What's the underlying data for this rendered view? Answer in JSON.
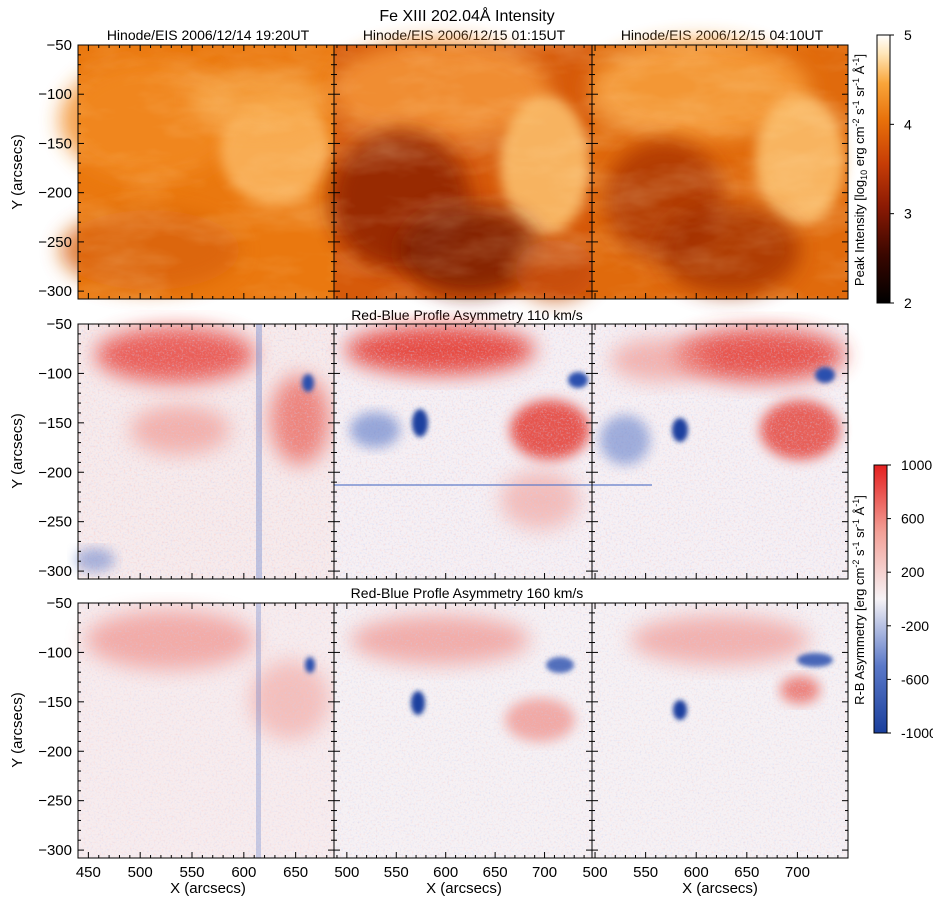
{
  "figure": {
    "title": "Fe XIII 202.04Å Intensity",
    "row_titles": [
      "",
      "Red-Blue Profle Asymmetry 110 km/s",
      "Red-Blue Profle Asymmetry 160 km/s"
    ],
    "column_titles": [
      "Hinode/EIS 2006/12/14 19:20UT",
      "Hinode/EIS 2006/12/15 01:15UT",
      "Hinode/EIS 2006/12/15 04:10UT"
    ],
    "ylabel": "Y (arcsecs)",
    "xlabel": "X (arcsecs)"
  },
  "chart_data": {
    "type": "heatmap",
    "rows": [
      {
        "quantity": "Fe XIII 202.04Å peak intensity",
        "colormap": "black-red-orange-yellow-white",
        "colorbar": {
          "label_parts": [
            "Peak Intensity [log",
            "10",
            " erg cm",
            "-2",
            " s",
            "-1",
            " sr",
            "-1",
            " Å",
            "-1",
            "]"
          ],
          "range": [
            2,
            5
          ],
          "ticks": [
            "2",
            "3",
            "4",
            "5"
          ]
        }
      },
      {
        "title": "Red-Blue Profle Asymmetry 110 km/s",
        "colormap": "blue-white-red",
        "colorbar": {
          "label_parts": [
            "R-B Asymmetry [erg cm",
            "-2",
            " s",
            "-1",
            " sr",
            "-1",
            " Å",
            "-1",
            "]"
          ],
          "range": [
            -1000,
            1000
          ],
          "ticks": [
            "1000",
            "600",
            "200",
            "-200",
            "-600",
            "-1000"
          ]
        }
      },
      {
        "title": "Red-Blue Profle Asymmetry 160 km/s",
        "colormap": "blue-white-red",
        "shares_colorbar_with_row": 2
      }
    ],
    "panels_per_row": [
      {
        "title": "Hinode/EIS 2006/12/14 19:20UT",
        "xlim": [
          440,
          687
        ],
        "xticks": [
          "450",
          "500",
          "550",
          "600",
          "650"
        ],
        "xtick_values": [
          450,
          500,
          550,
          600,
          650
        ]
      },
      {
        "title": "Hinode/EIS 2006/12/15 01:15UT",
        "xlim": [
          487,
          748
        ],
        "xticks": [
          "500",
          "550",
          "600",
          "650",
          "700"
        ],
        "xtick_values": [
          500,
          550,
          600,
          650,
          700
        ]
      },
      {
        "title": "Hinode/EIS 2006/12/15 04:10UT",
        "xlim": [
          497,
          750
        ],
        "xticks": [
          "500",
          "550",
          "600",
          "650",
          "700"
        ],
        "xtick_values": [
          500,
          550,
          600,
          650,
          700
        ]
      }
    ],
    "ylim": [
      -308,
      -50
    ],
    "yticks": [
      "−50",
      "−100",
      "−150",
      "−200",
      "−250",
      "−300"
    ],
    "ytick_values": [
      -50,
      -100,
      -150,
      -200,
      -250,
      -300
    ],
    "colors": {
      "intensity_stops": [
        "#000000",
        "#3a0700",
        "#8b1a04",
        "#c73d06",
        "#e8700a",
        "#f9a53a",
        "#ffe6b8",
        "#ffffff"
      ],
      "asymmetry_stops": [
        "#1a3f9c",
        "#5a78c8",
        "#f6f3f6",
        "#f3a097",
        "#e41f1f"
      ]
    }
  }
}
